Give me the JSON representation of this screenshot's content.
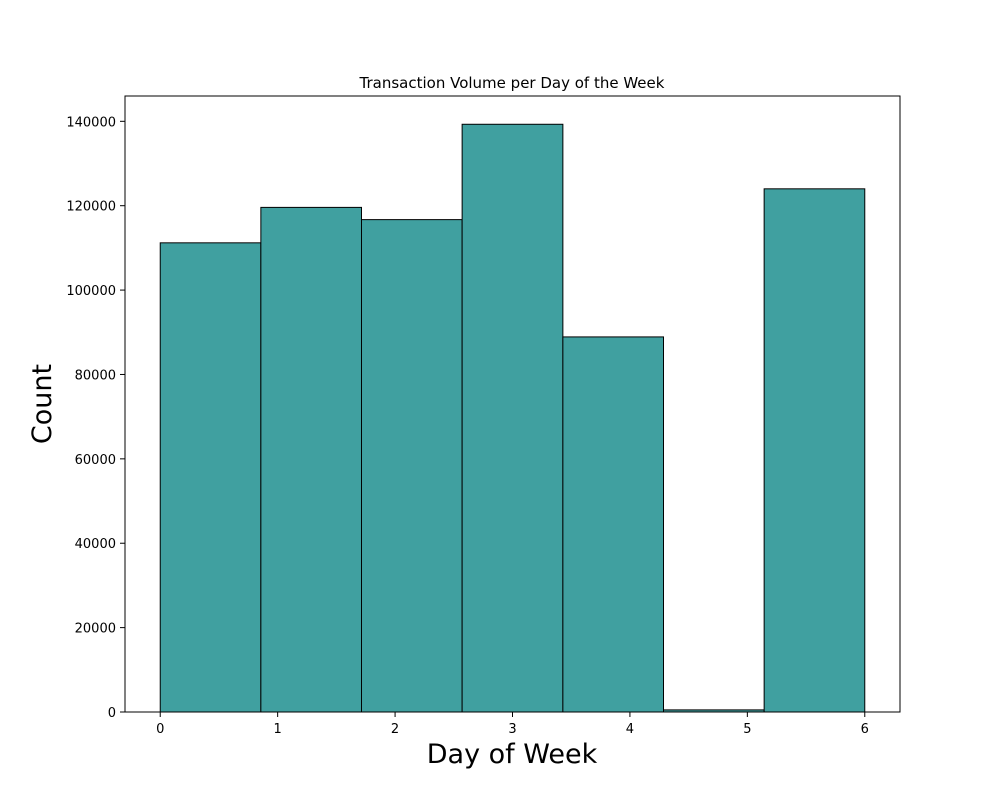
{
  "chart_data": {
    "type": "bar",
    "title": "Transaction Volume per Day of the Week",
    "xlabel": "Day of Week",
    "ylabel": "Count",
    "bins": [
      {
        "start": 0.0,
        "end": 0.857,
        "value": 111200
      },
      {
        "start": 0.857,
        "end": 1.714,
        "value": 119600
      },
      {
        "start": 1.714,
        "end": 2.571,
        "value": 116700
      },
      {
        "start": 2.571,
        "end": 3.429,
        "value": 139300
      },
      {
        "start": 3.429,
        "end": 4.286,
        "value": 88900
      },
      {
        "start": 4.286,
        "end": 5.143,
        "value": 500
      },
      {
        "start": 5.143,
        "end": 6.0,
        "value": 124000
      }
    ],
    "xlim": [
      -0.3,
      6.3
    ],
    "ylim": [
      0,
      146000
    ],
    "xticks": [
      0,
      1,
      2,
      3,
      4,
      5,
      6
    ],
    "yticks": [
      0,
      20000,
      40000,
      60000,
      80000,
      100000,
      120000,
      140000
    ],
    "bar_color": "#40a0a0",
    "edge_color": "#000000",
    "grid": false,
    "legend": false
  }
}
